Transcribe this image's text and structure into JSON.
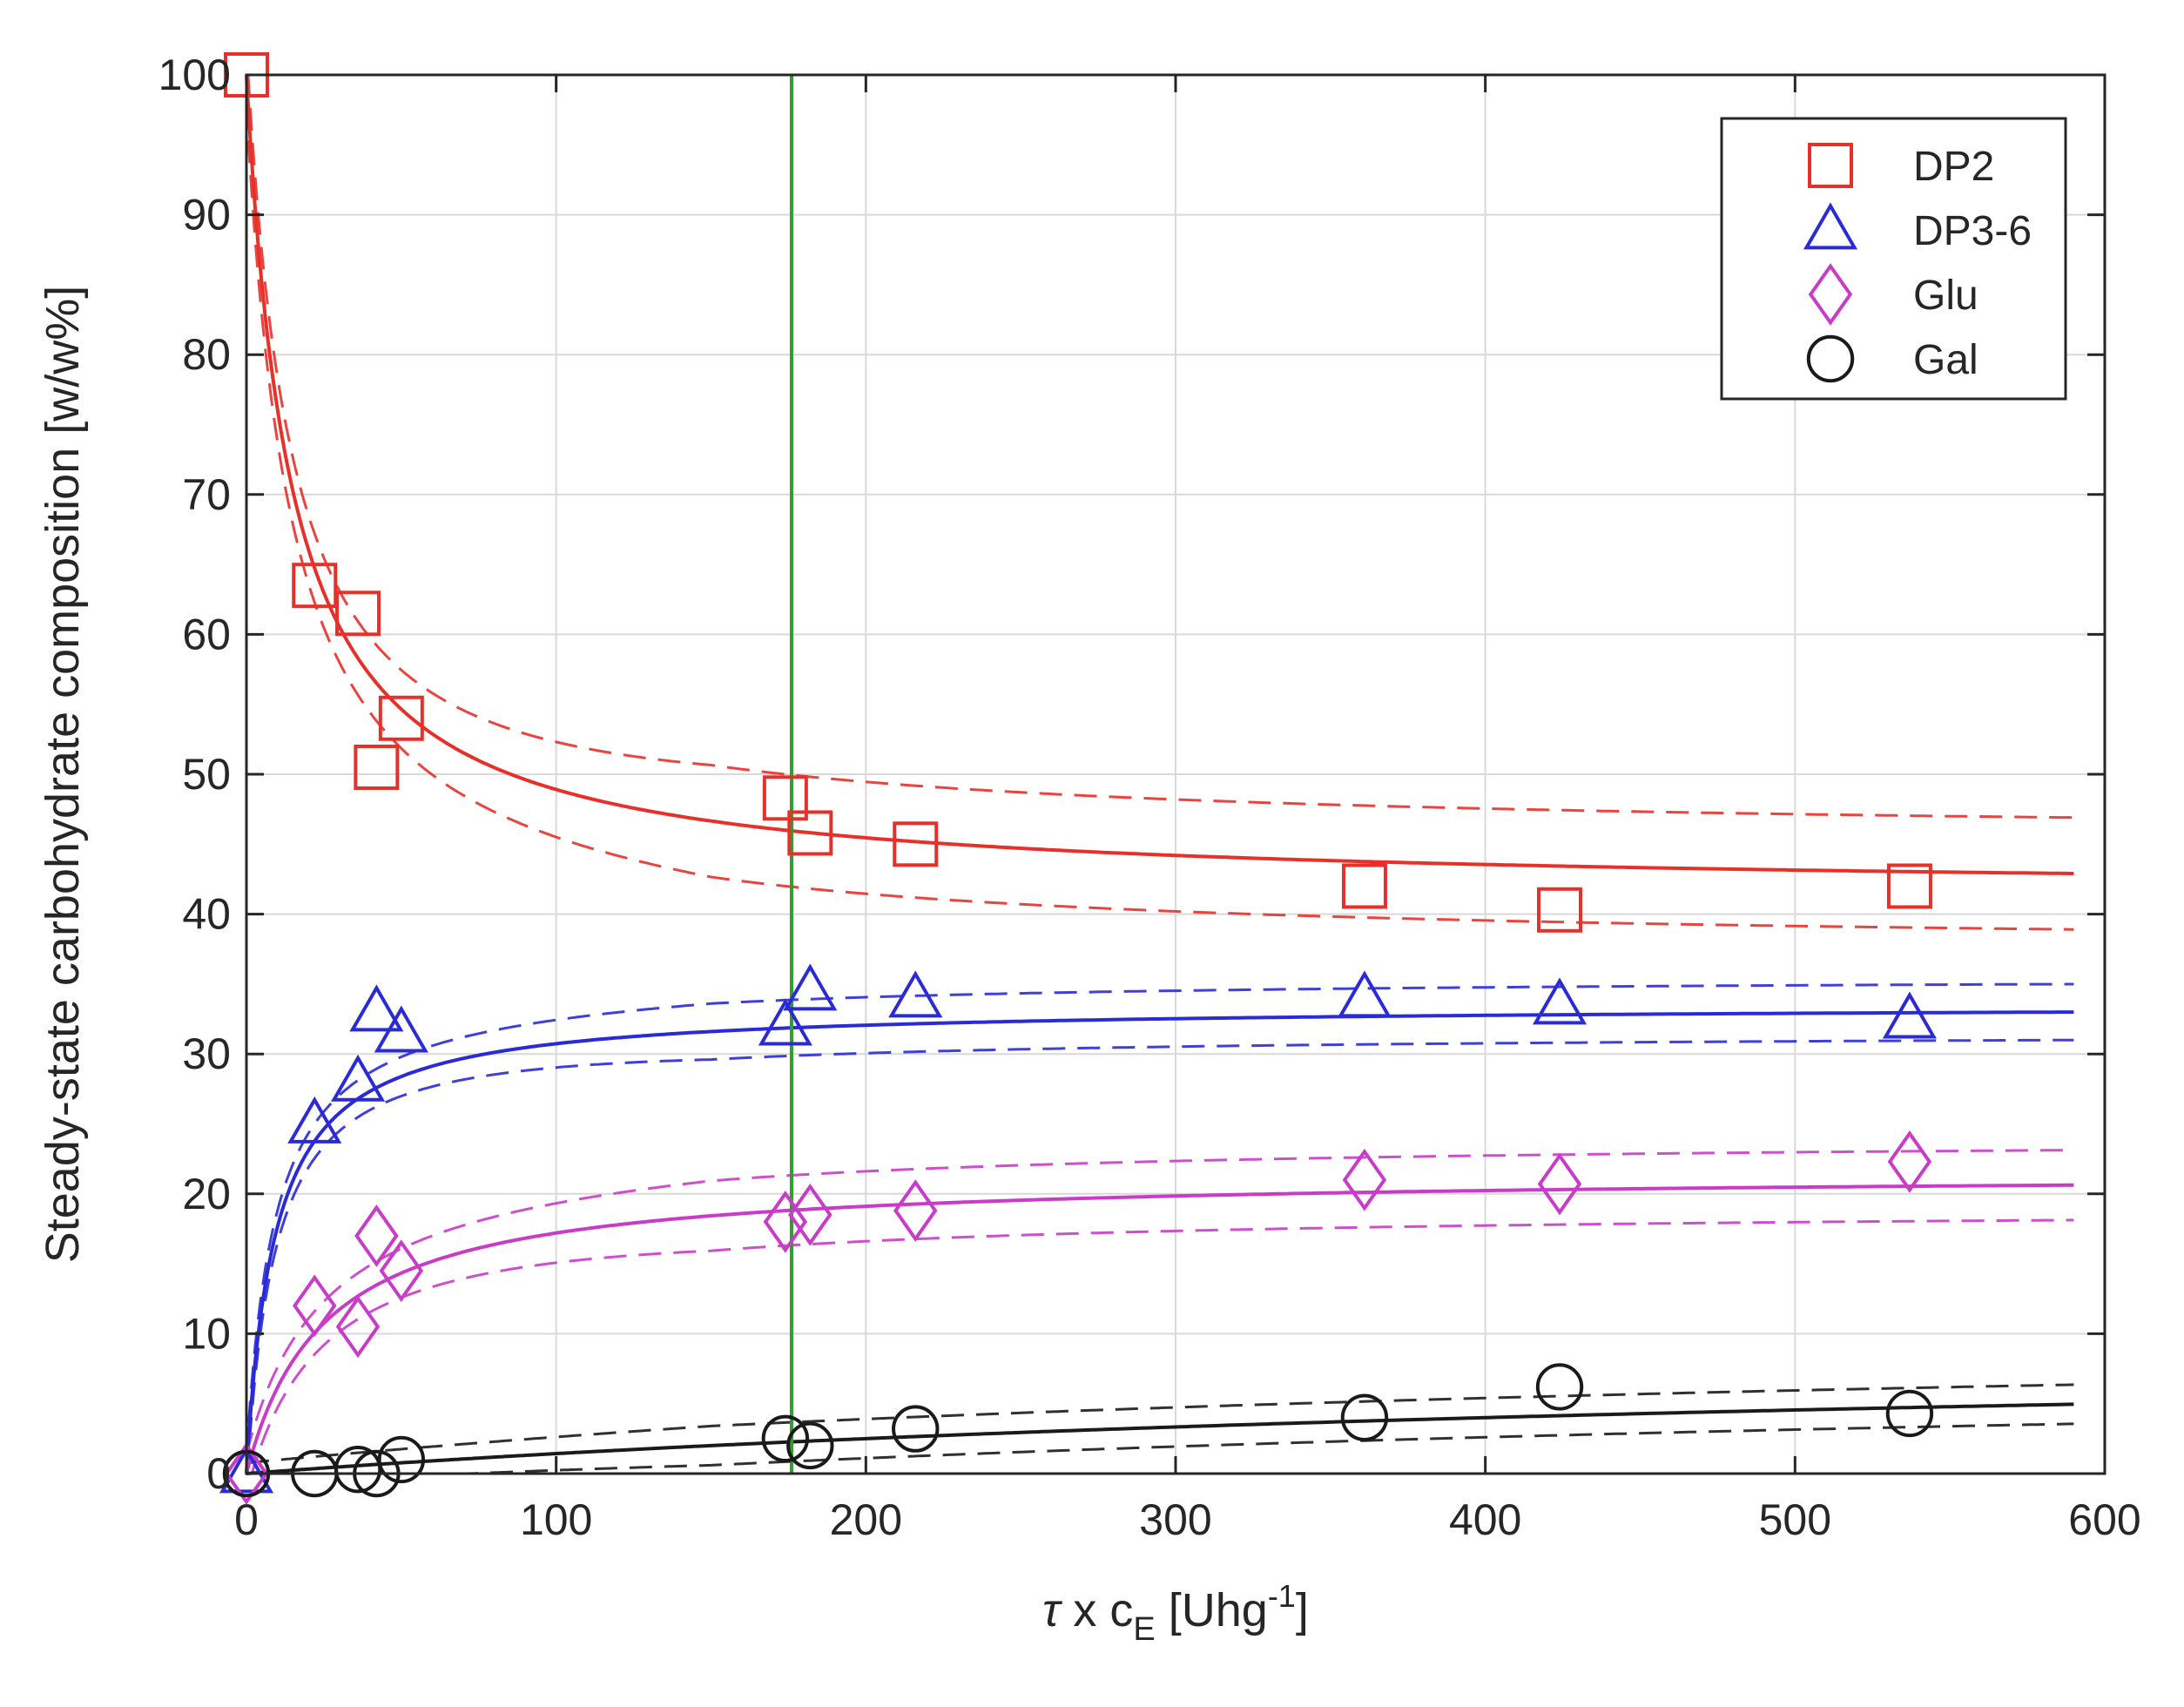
{
  "chart_data": {
    "type": "scatter",
    "title": "",
    "xlabel": "τ x c_E [Uhg^-1]",
    "xlabel_parts": {
      "tau": "τ",
      "times": " x c",
      "sub": "E",
      "unit_open": " [Uhg",
      "sup": "-1",
      "unit_close": "]"
    },
    "ylabel": "Steady-state carbohydrate composition [w/w%]",
    "xlim": [
      0,
      600
    ],
    "ylim": [
      0,
      100
    ],
    "xticks": [
      0,
      100,
      200,
      300,
      400,
      500,
      600
    ],
    "yticks": [
      0,
      10,
      20,
      30,
      40,
      50,
      60,
      70,
      80,
      90,
      100
    ],
    "grid": true,
    "legend_position": "top-right",
    "vertical_marker_x": 176,
    "vertical_marker_color": "#2ca02c",
    "series": [
      {
        "name": "DP2",
        "marker": "square",
        "color": "#e8302a",
        "x": [
          0,
          22,
          36,
          42,
          50,
          174,
          182,
          216,
          361,
          424,
          537
        ],
        "y": [
          100,
          63.5,
          61.5,
          50.5,
          54,
          48.3,
          45.8,
          45,
          42,
          40.3,
          42
        ],
        "fit": {
          "y0": 100,
          "yinf": 41.5,
          "k": 14.5,
          "n": 1
        },
        "band_spread": 4.0
      },
      {
        "name": "DP3-6",
        "marker": "triangle",
        "color": "#2a2ad6",
        "x": [
          0,
          22,
          36,
          42,
          50,
          174,
          182,
          216,
          361,
          424,
          537
        ],
        "y": [
          0,
          25,
          28,
          33,
          31.5,
          32,
          34.5,
          34,
          34,
          33.5,
          32.5
        ],
        "fit": {
          "y0": 0,
          "yinf": 33.5,
          "k": 9,
          "n": 1
        },
        "band_spread": 2.0
      },
      {
        "name": "Glu",
        "marker": "diamond",
        "color": "#c83cc8",
        "x": [
          0,
          22,
          36,
          42,
          50,
          174,
          182,
          216,
          361,
          424,
          537
        ],
        "y": [
          0,
          12,
          10.5,
          17,
          14.5,
          18,
          18.5,
          18.8,
          21,
          20.7,
          22.3
        ],
        "fit": {
          "y0": 0,
          "yinf": 21.5,
          "k": 25,
          "n": 1
        },
        "band_spread": 2.5
      },
      {
        "name": "Gal",
        "marker": "circle",
        "color": "#1a1a1a",
        "x": [
          0,
          22,
          36,
          42,
          50,
          174,
          182,
          216,
          361,
          424,
          537
        ],
        "y": [
          0,
          0,
          0.3,
          0,
          1,
          2.5,
          2,
          3.2,
          4,
          6.2,
          4.3
        ],
        "fit": {
          "y0": 0,
          "yinf": 10,
          "k": 600,
          "n": 1
        },
        "band_spread": 1.4
      }
    ]
  }
}
